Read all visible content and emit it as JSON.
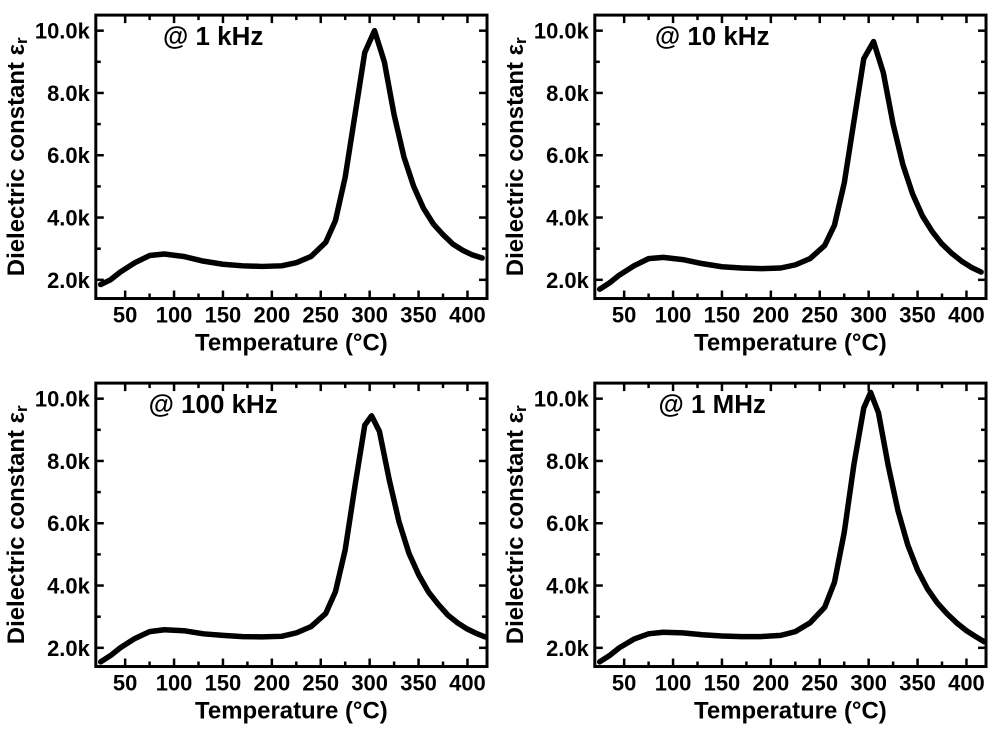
{
  "figure": {
    "background_color": "#ffffff",
    "line_color": "#000000",
    "axis_color": "#000000",
    "text_color": "#000000",
    "line_width": 5.5,
    "axis_stroke_width": 3,
    "tick_len_major": 8,
    "tick_len_minor": 5,
    "tick_stroke": 2.5,
    "label_fontsize": 24,
    "label_fontweight": "bold",
    "tick_fontsize": 22,
    "tick_fontweight": "bold",
    "annot_fontsize": 26,
    "annot_fontweight": "bold",
    "xlabel": "Temperature (°C)",
    "ylabel_prefix": "Dielectric constant ",
    "ylabel_symbol": "εr",
    "xlim": [
      20,
      420
    ],
    "ylim": [
      1.4,
      10.5
    ],
    "xticks_major": [
      50,
      100,
      150,
      200,
      250,
      300,
      350,
      400
    ],
    "yticks_major": [
      2.0,
      4.0,
      6.0,
      8.0,
      10.0
    ],
    "ytick_labels": [
      "2.0k",
      "4.0k",
      "6.0k",
      "8.0k",
      "10.0k"
    ],
    "panels": [
      {
        "id": "p1",
        "annot": "@ 1 kHz",
        "data": [
          [
            25,
            1.85
          ],
          [
            35,
            2.0
          ],
          [
            45,
            2.25
          ],
          [
            60,
            2.55
          ],
          [
            75,
            2.78
          ],
          [
            90,
            2.83
          ],
          [
            110,
            2.75
          ],
          [
            130,
            2.6
          ],
          [
            150,
            2.5
          ],
          [
            170,
            2.45
          ],
          [
            190,
            2.43
          ],
          [
            210,
            2.45
          ],
          [
            225,
            2.55
          ],
          [
            240,
            2.75
          ],
          [
            255,
            3.2
          ],
          [
            265,
            3.9
          ],
          [
            275,
            5.3
          ],
          [
            285,
            7.3
          ],
          [
            295,
            9.3
          ],
          [
            305,
            10.0
          ],
          [
            315,
            9.0
          ],
          [
            325,
            7.3
          ],
          [
            335,
            5.95
          ],
          [
            345,
            5.0
          ],
          [
            355,
            4.3
          ],
          [
            365,
            3.8
          ],
          [
            375,
            3.45
          ],
          [
            385,
            3.15
          ],
          [
            395,
            2.95
          ],
          [
            405,
            2.8
          ],
          [
            415,
            2.7
          ]
        ]
      },
      {
        "id": "p2",
        "annot": "@ 10 kHz",
        "data": [
          [
            25,
            1.7
          ],
          [
            35,
            1.9
          ],
          [
            45,
            2.15
          ],
          [
            60,
            2.45
          ],
          [
            75,
            2.68
          ],
          [
            90,
            2.72
          ],
          [
            110,
            2.65
          ],
          [
            130,
            2.52
          ],
          [
            150,
            2.42
          ],
          [
            170,
            2.38
          ],
          [
            190,
            2.36
          ],
          [
            210,
            2.38
          ],
          [
            225,
            2.48
          ],
          [
            240,
            2.68
          ],
          [
            255,
            3.1
          ],
          [
            265,
            3.75
          ],
          [
            275,
            5.1
          ],
          [
            285,
            7.1
          ],
          [
            295,
            9.1
          ],
          [
            305,
            9.65
          ],
          [
            315,
            8.65
          ],
          [
            325,
            7.0
          ],
          [
            335,
            5.7
          ],
          [
            345,
            4.75
          ],
          [
            355,
            4.05
          ],
          [
            365,
            3.55
          ],
          [
            375,
            3.15
          ],
          [
            385,
            2.85
          ],
          [
            395,
            2.6
          ],
          [
            405,
            2.4
          ],
          [
            415,
            2.25
          ]
        ]
      },
      {
        "id": "p3",
        "annot": "@ 100 kHz",
        "data": [
          [
            25,
            1.55
          ],
          [
            35,
            1.75
          ],
          [
            45,
            2.0
          ],
          [
            60,
            2.3
          ],
          [
            75,
            2.52
          ],
          [
            90,
            2.58
          ],
          [
            110,
            2.55
          ],
          [
            130,
            2.45
          ],
          [
            150,
            2.4
          ],
          [
            170,
            2.36
          ],
          [
            190,
            2.35
          ],
          [
            210,
            2.37
          ],
          [
            225,
            2.48
          ],
          [
            240,
            2.68
          ],
          [
            255,
            3.1
          ],
          [
            265,
            3.8
          ],
          [
            275,
            5.15
          ],
          [
            285,
            7.2
          ],
          [
            295,
            9.15
          ],
          [
            302,
            9.45
          ],
          [
            310,
            8.95
          ],
          [
            320,
            7.4
          ],
          [
            330,
            6.05
          ],
          [
            340,
            5.05
          ],
          [
            350,
            4.35
          ],
          [
            360,
            3.8
          ],
          [
            370,
            3.4
          ],
          [
            380,
            3.05
          ],
          [
            390,
            2.8
          ],
          [
            400,
            2.6
          ],
          [
            410,
            2.45
          ],
          [
            418,
            2.35
          ]
        ]
      },
      {
        "id": "p4",
        "annot": "@ 1 MHz",
        "data": [
          [
            25,
            1.55
          ],
          [
            35,
            1.75
          ],
          [
            45,
            2.0
          ],
          [
            60,
            2.28
          ],
          [
            75,
            2.45
          ],
          [
            90,
            2.5
          ],
          [
            110,
            2.48
          ],
          [
            130,
            2.42
          ],
          [
            150,
            2.38
          ],
          [
            170,
            2.36
          ],
          [
            190,
            2.36
          ],
          [
            210,
            2.4
          ],
          [
            225,
            2.52
          ],
          [
            240,
            2.8
          ],
          [
            255,
            3.3
          ],
          [
            265,
            4.1
          ],
          [
            275,
            5.7
          ],
          [
            285,
            7.9
          ],
          [
            295,
            9.7
          ],
          [
            302,
            10.2
          ],
          [
            310,
            9.55
          ],
          [
            320,
            7.85
          ],
          [
            330,
            6.4
          ],
          [
            340,
            5.3
          ],
          [
            350,
            4.5
          ],
          [
            360,
            3.9
          ],
          [
            370,
            3.45
          ],
          [
            380,
            3.1
          ],
          [
            390,
            2.8
          ],
          [
            400,
            2.55
          ],
          [
            410,
            2.35
          ],
          [
            418,
            2.2
          ]
        ]
      }
    ]
  }
}
